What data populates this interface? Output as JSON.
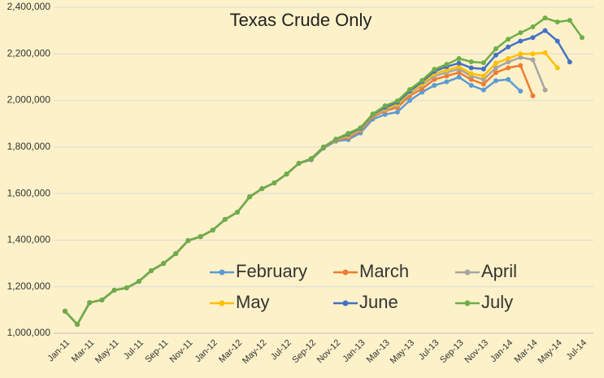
{
  "chart_data": {
    "type": "line",
    "title": "Texas Crude Only",
    "categories": [
      "Jan-11",
      null,
      "Mar-11",
      null,
      "May-11",
      null,
      "Jul-11",
      null,
      "Sep-11",
      null,
      "Nov-11",
      null,
      "Jan-12",
      null,
      "Mar-12",
      null,
      "May-12",
      null,
      "Jul-12",
      null,
      "Sep-12",
      null,
      "Nov-12",
      null,
      "Jan-13",
      null,
      "Mar-13",
      null,
      "May-13",
      null,
      "Jul-13",
      null,
      "Sep-13",
      null,
      "Nov-13",
      null,
      "Jan-14",
      null,
      "Mar-14",
      null,
      "May-14",
      null,
      "Jul-14"
    ],
    "ylim": [
      1000000,
      2400000
    ],
    "yticks": [
      {
        "value": 1000000,
        "label": "1,000,000"
      },
      {
        "value": 1200000,
        "label": "1,200,000"
      },
      {
        "value": 1400000,
        "label": "1,400,000"
      },
      {
        "value": 1600000,
        "label": "1,600,000"
      },
      {
        "value": 1800000,
        "label": "1,800,000"
      },
      {
        "value": 2000000,
        "label": "2,000,000"
      },
      {
        "value": 2200000,
        "label": "2,200,000"
      },
      {
        "value": 2400000,
        "label": "2,400,000"
      }
    ],
    "grid": true,
    "series": [
      {
        "name": "February",
        "color": "#5b9bd5",
        "values": [
          1095000,
          1038000,
          1132000,
          1143000,
          1185000,
          1195000,
          1223000,
          1269000,
          1300000,
          1342000,
          1398000,
          1415000,
          1443000,
          1489000,
          1520000,
          1586000,
          1621000,
          1646000,
          1684000,
          1730000,
          1745000,
          1795000,
          1825000,
          1832000,
          1860000,
          1920000,
          1940000,
          1950000,
          2000000,
          2035000,
          2065000,
          2080000,
          2100000,
          2065000,
          2045000,
          2085000,
          2090000,
          2040000,
          null,
          null,
          null,
          null,
          null
        ]
      },
      {
        "name": "March",
        "color": "#ed7d31",
        "values": [
          1095000,
          1038000,
          1132000,
          1143000,
          1185000,
          1195000,
          1223000,
          1269000,
          1300000,
          1342000,
          1398000,
          1415000,
          1443000,
          1489000,
          1520000,
          1586000,
          1621000,
          1646000,
          1684000,
          1730000,
          1748000,
          1798000,
          1828000,
          1840000,
          1870000,
          1930000,
          1955000,
          1970000,
          2020000,
          2050000,
          2090000,
          2105000,
          2120000,
          2090000,
          2070000,
          2120000,
          2140000,
          2150000,
          2020000,
          null,
          null,
          null,
          null
        ]
      },
      {
        "name": "April",
        "color": "#a5a5a5",
        "values": [
          1095000,
          1038000,
          1132000,
          1143000,
          1185000,
          1195000,
          1223000,
          1269000,
          1300000,
          1342000,
          1398000,
          1415000,
          1443000,
          1489000,
          1520000,
          1586000,
          1621000,
          1646000,
          1684000,
          1730000,
          1750000,
          1800000,
          1830000,
          1845000,
          1875000,
          1935000,
          1960000,
          1980000,
          2030000,
          2065000,
          2105000,
          2120000,
          2135000,
          2105000,
          2090000,
          2140000,
          2165000,
          2185000,
          2175000,
          2045000,
          null,
          null,
          null
        ]
      },
      {
        "name": "May",
        "color": "#ffc000",
        "values": [
          1095000,
          1038000,
          1132000,
          1143000,
          1185000,
          1195000,
          1223000,
          1269000,
          1300000,
          1342000,
          1398000,
          1415000,
          1443000,
          1489000,
          1520000,
          1586000,
          1621000,
          1646000,
          1684000,
          1730000,
          1750000,
          1800000,
          1832000,
          1850000,
          1878000,
          1938000,
          1965000,
          1985000,
          2035000,
          2070000,
          2115000,
          2130000,
          2145000,
          2115000,
          2105000,
          2160000,
          2180000,
          2200000,
          2200000,
          2205000,
          2140000,
          null,
          null
        ]
      },
      {
        "name": "June",
        "color": "#4472c4",
        "values": [
          1095000,
          1038000,
          1132000,
          1143000,
          1185000,
          1195000,
          1223000,
          1269000,
          1300000,
          1342000,
          1398000,
          1415000,
          1443000,
          1489000,
          1520000,
          1586000,
          1621000,
          1646000,
          1684000,
          1730000,
          1750000,
          1800000,
          1833000,
          1855000,
          1880000,
          1940000,
          1970000,
          1992000,
          2040000,
          2080000,
          2125000,
          2145000,
          2160000,
          2140000,
          2135000,
          2195000,
          2230000,
          2255000,
          2270000,
          2300000,
          2255000,
          2165000,
          null
        ]
      },
      {
        "name": "July",
        "color": "#70ad47",
        "values": [
          1095000,
          1038000,
          1132000,
          1143000,
          1185000,
          1195000,
          1223000,
          1269000,
          1300000,
          1342000,
          1398000,
          1415000,
          1443000,
          1489000,
          1520000,
          1586000,
          1621000,
          1646000,
          1684000,
          1730000,
          1750000,
          1800000,
          1834000,
          1859000,
          1883000,
          1942000,
          1977000,
          1998000,
          2047000,
          2086000,
          2134000,
          2155000,
          2180000,
          2166000,
          2162000,
          2222000,
          2263000,
          2291000,
          2316000,
          2354000,
          2337000,
          2344000,
          2270000
        ]
      }
    ]
  }
}
